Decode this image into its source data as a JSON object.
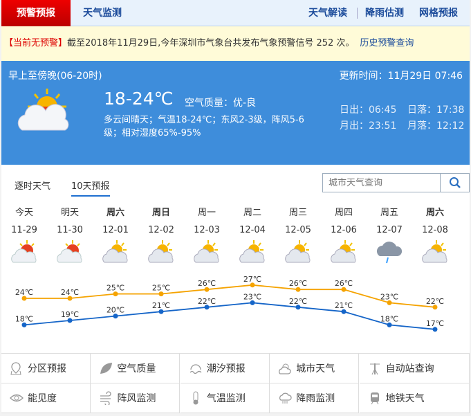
{
  "nav": {
    "active": "预警预报",
    "monitor": "天气监测",
    "right": [
      "天气解读",
      "降雨估测",
      "网格预报"
    ]
  },
  "warning": {
    "status": "【当前无预警】",
    "text": "截至2018年11月29日,今年深圳市气象台共发布气象预警信号 252 次。",
    "link": "历史预警查询"
  },
  "now": {
    "period": "早上至傍晚(06-20时)",
    "update": "更新时间：11月29日 07:46",
    "temp": "18-24℃",
    "aqi": "空气质量：优-良",
    "desc1": "多云间晴天；气温18-24℃；东风2-3级，阵风5-6",
    "desc2": "级；相对湿度65%-95%",
    "sunrise": "日出：06:45",
    "sunset": "日落：17:38",
    "moonrise": "月出：23:51",
    "moonset": "月落：12:12",
    "icon": "partly-cloudy-icon"
  },
  "forecast": {
    "tabs": [
      "逐时天气",
      "10天预报"
    ],
    "active_tab": 1,
    "search_placeholder": "城市天气查询",
    "days": [
      {
        "w": "今天",
        "d": "11-29",
        "icon": "sun-cloud",
        "hi": "24℃",
        "lo": "18℃",
        "bold": false
      },
      {
        "w": "明天",
        "d": "11-30",
        "icon": "sun-cloud",
        "hi": "24℃",
        "lo": "19℃",
        "bold": false
      },
      {
        "w": "周六",
        "d": "12-01",
        "icon": "cloud-sun",
        "hi": "25℃",
        "lo": "20℃",
        "bold": true
      },
      {
        "w": "周日",
        "d": "12-02",
        "icon": "cloud-sun",
        "hi": "25℃",
        "lo": "21℃",
        "bold": true
      },
      {
        "w": "周一",
        "d": "12-03",
        "icon": "cloud-sun",
        "hi": "26℃",
        "lo": "22℃",
        "bold": false
      },
      {
        "w": "周二",
        "d": "12-04",
        "icon": "cloud-sun",
        "hi": "27℃",
        "lo": "23℃",
        "bold": false
      },
      {
        "w": "周三",
        "d": "12-05",
        "icon": "cloud-sun",
        "hi": "26℃",
        "lo": "22℃",
        "bold": false
      },
      {
        "w": "周四",
        "d": "12-06",
        "icon": "cloud-sun",
        "hi": "26℃",
        "lo": "21℃",
        "bold": false
      },
      {
        "w": "周五",
        "d": "12-07",
        "icon": "rain",
        "hi": "23℃",
        "lo": "18℃",
        "bold": false
      },
      {
        "w": "周六",
        "d": "12-08",
        "icon": "cloud-sun",
        "hi": "22℃",
        "lo": "17℃",
        "bold": true
      }
    ]
  },
  "chart_data": {
    "type": "line",
    "categories": [
      "11-29",
      "11-30",
      "12-01",
      "12-02",
      "12-03",
      "12-04",
      "12-05",
      "12-06",
      "12-07",
      "12-08"
    ],
    "series": [
      {
        "values": [
          24,
          24,
          25,
          25,
          26,
          27,
          26,
          26,
          23,
          22
        ],
        "color": "#f5a300"
      },
      {
        "values": [
          18,
          19,
          20,
          21,
          22,
          23,
          22,
          21,
          18,
          17
        ],
        "color": "#1565c8"
      }
    ]
  },
  "links": [
    {
      "label": "分区预报",
      "icon": "map-pin-icon"
    },
    {
      "label": "空气质量",
      "icon": "leaf-icon"
    },
    {
      "label": "潮汐预报",
      "icon": "wave-icon"
    },
    {
      "label": "城市天气",
      "icon": "city-weather-icon"
    },
    {
      "label": "自动站查询",
      "icon": "station-icon"
    },
    {
      "label": "能见度",
      "icon": "eye-icon"
    },
    {
      "label": "阵风监测",
      "icon": "wind-icon"
    },
    {
      "label": "气温监测",
      "icon": "thermometer-icon"
    },
    {
      "label": "降雨监测",
      "icon": "rain-cloud-icon"
    },
    {
      "label": "地铁天气",
      "icon": "train-icon"
    }
  ]
}
